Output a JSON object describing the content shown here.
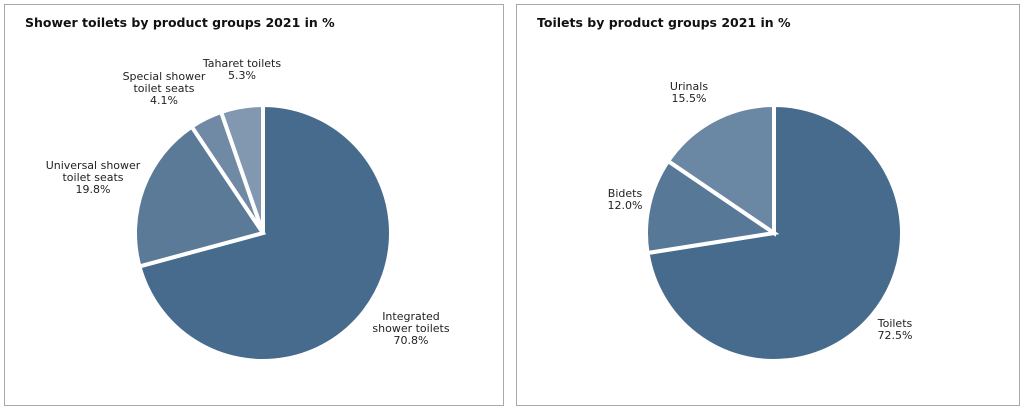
{
  "chart_data": [
    {
      "type": "pie",
      "title": "Shower toilets by product groups 2021 in %",
      "slices": [
        {
          "label": [
            "Integrated",
            "shower toilets"
          ],
          "value": 70.8,
          "display": "70.8%",
          "color": "#476b8d"
        },
        {
          "label": [
            "Universal shower",
            "toilet seats"
          ],
          "value": 19.8,
          "display": "19.8%",
          "color": "#5b7a98"
        },
        {
          "label": [
            "Special shower",
            "toilet seats"
          ],
          "value": 4.1,
          "display": "4.1%",
          "color": "#7089a4"
        },
        {
          "label": [
            "Taharet toilets"
          ],
          "value": 5.3,
          "display": "5.3%",
          "color": "#8198b0"
        }
      ]
    },
    {
      "type": "pie",
      "title": "Toilets by product groups 2021 in %",
      "slices": [
        {
          "label": [
            "Toilets"
          ],
          "value": 72.5,
          "display": "72.5%",
          "color": "#476b8d"
        },
        {
          "label": [
            "Bidets"
          ],
          "value": 12.0,
          "display": "12.0%",
          "color": "#587897"
        },
        {
          "label": [
            "Urinals"
          ],
          "value": 15.5,
          "display": "15.5%",
          "color": "#6a87a3"
        }
      ]
    }
  ]
}
